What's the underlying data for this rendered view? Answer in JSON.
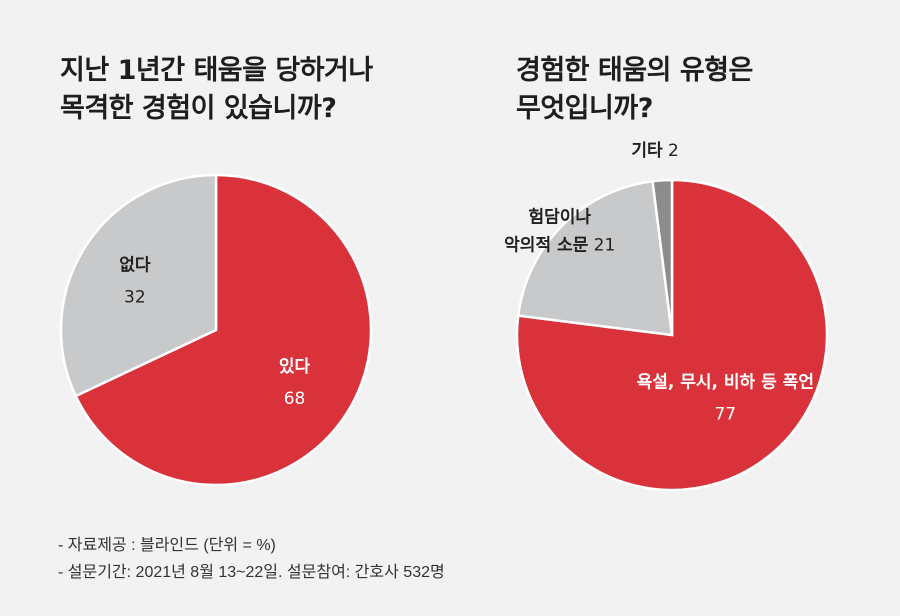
{
  "chart_data": [
    {
      "type": "pie",
      "title_lines": [
        "지난 1년간 태움을 당하거나",
        "목격한 경험이 있습니까?"
      ],
      "slices": [
        {
          "label_lines": [
            "있다"
          ],
          "value": 68,
          "color": "#d9323a",
          "label_color": "#ffffff"
        },
        {
          "label_lines": [
            "없다"
          ],
          "value": 32,
          "color": "#c8c9cb",
          "label_color": "#222222"
        }
      ]
    },
    {
      "type": "pie",
      "title_lines": [
        "경험한 태움의 유형은",
        "무엇입니까?"
      ],
      "slices": [
        {
          "label_lines": [
            "욕설, 무시, 비하 등 폭언"
          ],
          "value": 77,
          "color": "#d9323a",
          "label_color": "#ffffff"
        },
        {
          "label_lines": [
            "험담이나",
            "악의적 소문"
          ],
          "value": 21,
          "color": "#c8c9cb",
          "label_color": "#222222"
        },
        {
          "label_lines": [
            "기타"
          ],
          "value": 2,
          "color": "#8c8c8c",
          "label_color": "#222222"
        }
      ]
    }
  ],
  "source_lines": [
    "- 자료제공 : 블라인드 (단위 = %)",
    "- 설문기간: 2021년 8월 13~22일.  설문참여:  간호사 532명"
  ],
  "colors": {
    "accent": "#d9323a",
    "gray": "#c8c9cb",
    "dark_gray": "#8c8c8c",
    "background": "#f2f2f2"
  }
}
